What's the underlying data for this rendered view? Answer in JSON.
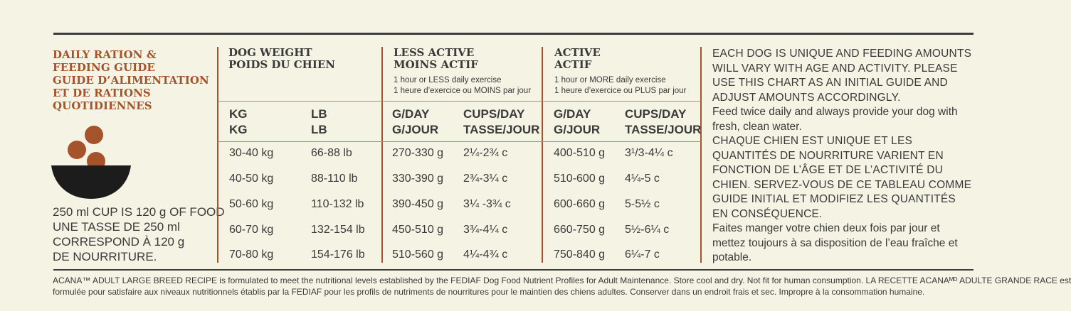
{
  "left": {
    "title_lines": [
      "DAILY RATION &",
      "FEEDING GUIDE",
      "GUIDE D’ALIMENTATION",
      "ET DE RATIONS",
      "QUOTIDIENNES"
    ],
    "cup_note_lines": [
      "250 ml CUP IS 120 g OF FOOD",
      "UNE TASSE DE 250 ml",
      "CORRESPOND À 120 g",
      "DE NOURRITURE."
    ]
  },
  "table": {
    "dog_weight": {
      "title_en": "DOG WEIGHT",
      "title_fr": "POIDS DU CHIEN",
      "kg_en": "KG",
      "kg_fr": "KG",
      "lb_en": "LB",
      "lb_fr": "LB"
    },
    "less_active": {
      "title_en": "LESS ACTIVE",
      "title_fr": "MOINS ACTIF",
      "sub_en": "1 hour or LESS daily exercise",
      "sub_fr": "1 heure d’exercice ou MOINS par jour",
      "gday_en": "G/DAY",
      "gday_fr": "G/JOUR",
      "cups_en": "CUPS/DAY",
      "cups_fr": "TASSE/JOUR"
    },
    "active": {
      "title_en": "ACTIVE",
      "title_fr": "ACTIF",
      "sub_en": "1 hour or MORE daily exercise",
      "sub_fr": "1 heure d’exercice ou PLUS par jour",
      "gday_en": "G/DAY",
      "gday_fr": "G/JOUR",
      "cups_en": "CUPS/DAY",
      "cups_fr": "TASSE/JOUR"
    },
    "rows": [
      {
        "kg": "30-40 kg",
        "lb": "66-88 lb",
        "la_g": "270-330 g",
        "la_c": "2¼-2¾ c",
        "a_g": "400-510 g",
        "a_c": "3¹/3-4¼ c"
      },
      {
        "kg": "40-50 kg",
        "lb": "88-110 lb",
        "la_g": "330-390 g",
        "la_c": "2¾-3¼ c",
        "a_g": "510-600 g",
        "a_c": "4¼-5 c"
      },
      {
        "kg": "50-60 kg",
        "lb": "110-132 lb",
        "la_g": "390-450 g",
        "la_c": "3¼ -3¾ c",
        "a_g": "600-660 g",
        "a_c": "5-5½ c"
      },
      {
        "kg": "60-70 kg",
        "lb": "132-154 lb",
        "la_g": "450-510 g",
        "la_c": "3¾-4¼ c",
        "a_g": "660-750 g",
        "a_c": "5½-6¼ c"
      },
      {
        "kg": "70-80 kg",
        "lb": "154-176 lb",
        "la_g": "510-560 g",
        "la_c": "4¼-4¾ c",
        "a_g": "750-840 g",
        "a_c": "6¼-7 c"
      }
    ]
  },
  "right": {
    "p1": "EACH DOG IS UNIQUE AND FEEDING AMOUNTS WILL VARY WITH AGE AND ACTIVITY. PLEASE USE THIS CHART AS AN INITIAL GUIDE AND ADJUST AMOUNTS ACCORDINGLY.",
    "p2": "Feed twice daily and always provide your dog with fresh, clean water.",
    "p3": "CHAQUE CHIEN EST UNIQUE ET LES QUANTITÉS DE NOURRITURE VARIENT EN FONCTION DE L’ÂGE ET DE L’ACTIVITÉ DU CHIEN. SERVEZ-VOUS DE CE TABLEAU COMME GUIDE INITIAL ET MODIFIEZ LES QUANTITÉS EN CONSÉQUENCE.",
    "p4": "Faites manger votre chien deux fois par jour et mettez toujours à sa disposition de l’eau fraîche et potable."
  },
  "footer": {
    "line1": "ACANA™ ADULT LARGE BREED RECIPE is formulated to meet the nutritional levels established by the FEDIAF Dog Food Nutrient Profiles for Adult Maintenance. Store cool and dry. Not fit for human consumption. LA RECETTE ACANAᴹᴰ ADULTE GRANDE RACE est",
    "line2": "formulée pour satisfaire aux niveaux nutritionnels établis par la FEDIAF pour les profils de nutriments de nourritures pour le maintien des chiens adultes. Conserver dans un endroit frais et sec. Impropre à la consommation humaine."
  },
  "colors": {
    "accent": "#a5532a",
    "text": "#3a3a3a",
    "background": "#f4f3e4",
    "bowl": "#1c1c1c"
  }
}
